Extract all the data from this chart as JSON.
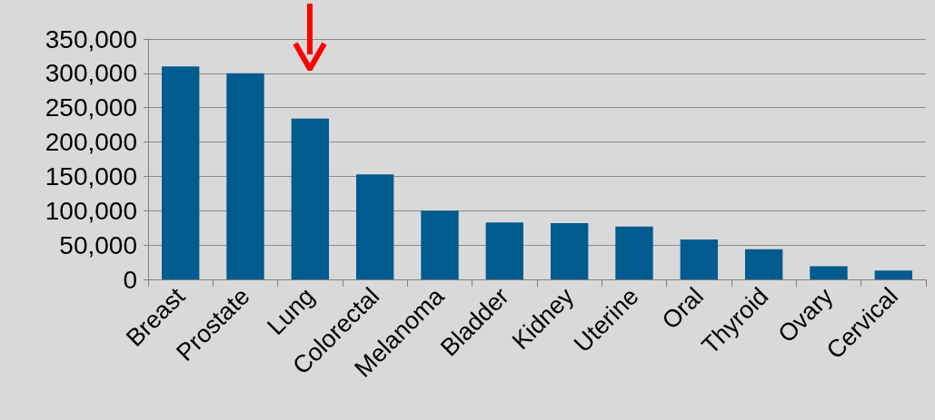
{
  "chart_data": {
    "type": "bar",
    "categories": [
      "Breast",
      "Prostate",
      "Lung",
      "Colorectal",
      "Melanoma",
      "Bladder",
      "Kidney",
      "Uterine",
      "Oral",
      "Thyroid",
      "Ovary",
      "Cervical"
    ],
    "values": [
      310000,
      300000,
      234000,
      153000,
      100000,
      83000,
      82000,
      77000,
      58000,
      44000,
      19000,
      13000
    ],
    "color": "#005b8f",
    "ylim": [
      0,
      350000
    ],
    "yticks": [
      0,
      {
        "value": 50000,
        "label": "50,000"
      },
      {
        "value": 100000,
        "label": "100,000"
      },
      {
        "value": 150000,
        "label": "150,000"
      },
      {
        "value": 200000,
        "label": "200,000"
      },
      {
        "value": 250000,
        "label": "250,000"
      },
      {
        "value": 300000,
        "label": "300,000"
      },
      {
        "value": 350000,
        "label": "350,000"
      }
    ],
    "grid": "y"
  }
}
